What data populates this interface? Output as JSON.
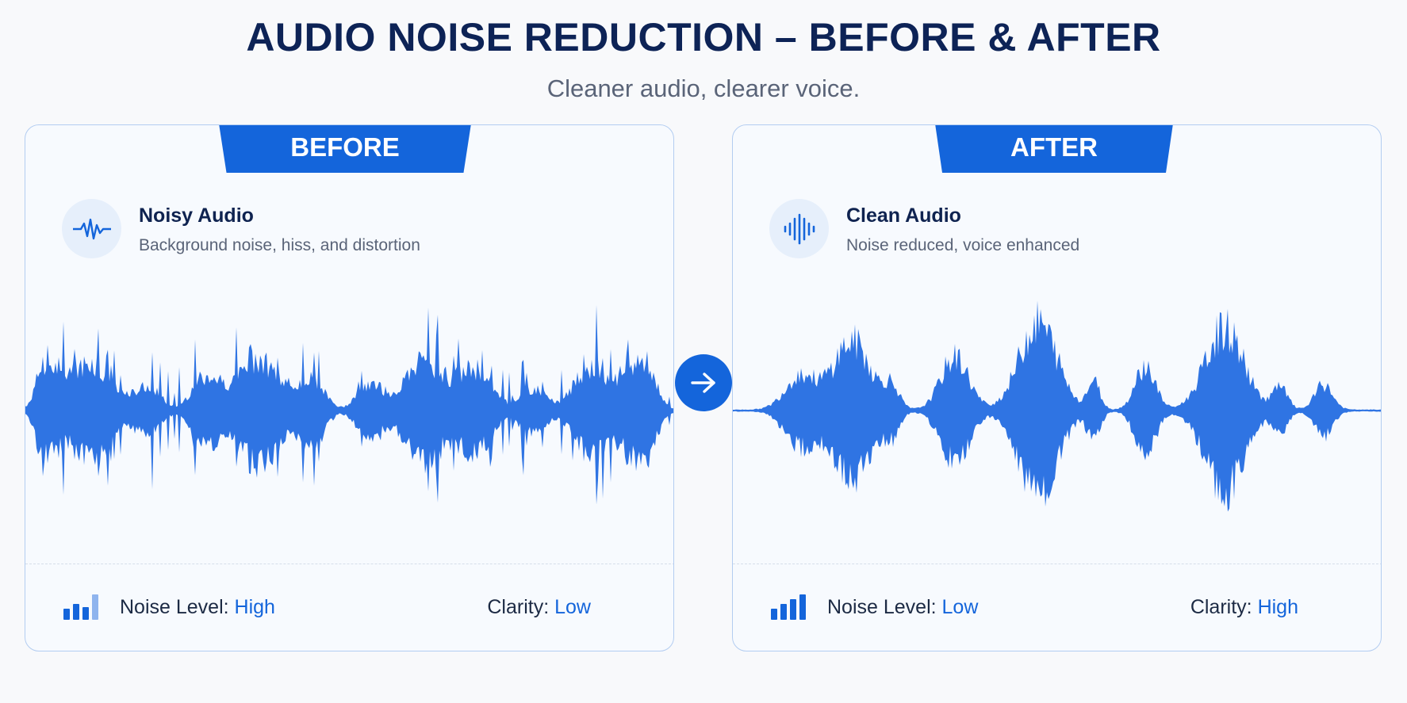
{
  "header": {
    "title": "AUDIO NOISE REDUCTION – BEFORE & AFTER",
    "subtitle": "Cleaner audio, clearer voice."
  },
  "before": {
    "tab_label": "BEFORE",
    "icon": "waveform-icon",
    "heading": "Noisy Audio",
    "description": "Background noise, hiss, and distortion",
    "noise_label": "Noise Level:",
    "noise_value": "High",
    "clarity_label": "Clarity:",
    "clarity_value": "Low"
  },
  "after": {
    "tab_label": "AFTER",
    "icon": "sound-bars-icon",
    "heading": "Clean Audio",
    "description": "Noise reduced, voice enhanced",
    "noise_label": "Noise Level:",
    "noise_value": "Low",
    "clarity_label": "Clarity:",
    "clarity_value": "High"
  },
  "colors": {
    "accent": "#1465db",
    "wave": "#2f74e3",
    "title": "#0d2356"
  },
  "arrow_icon": "arrow-right-icon"
}
